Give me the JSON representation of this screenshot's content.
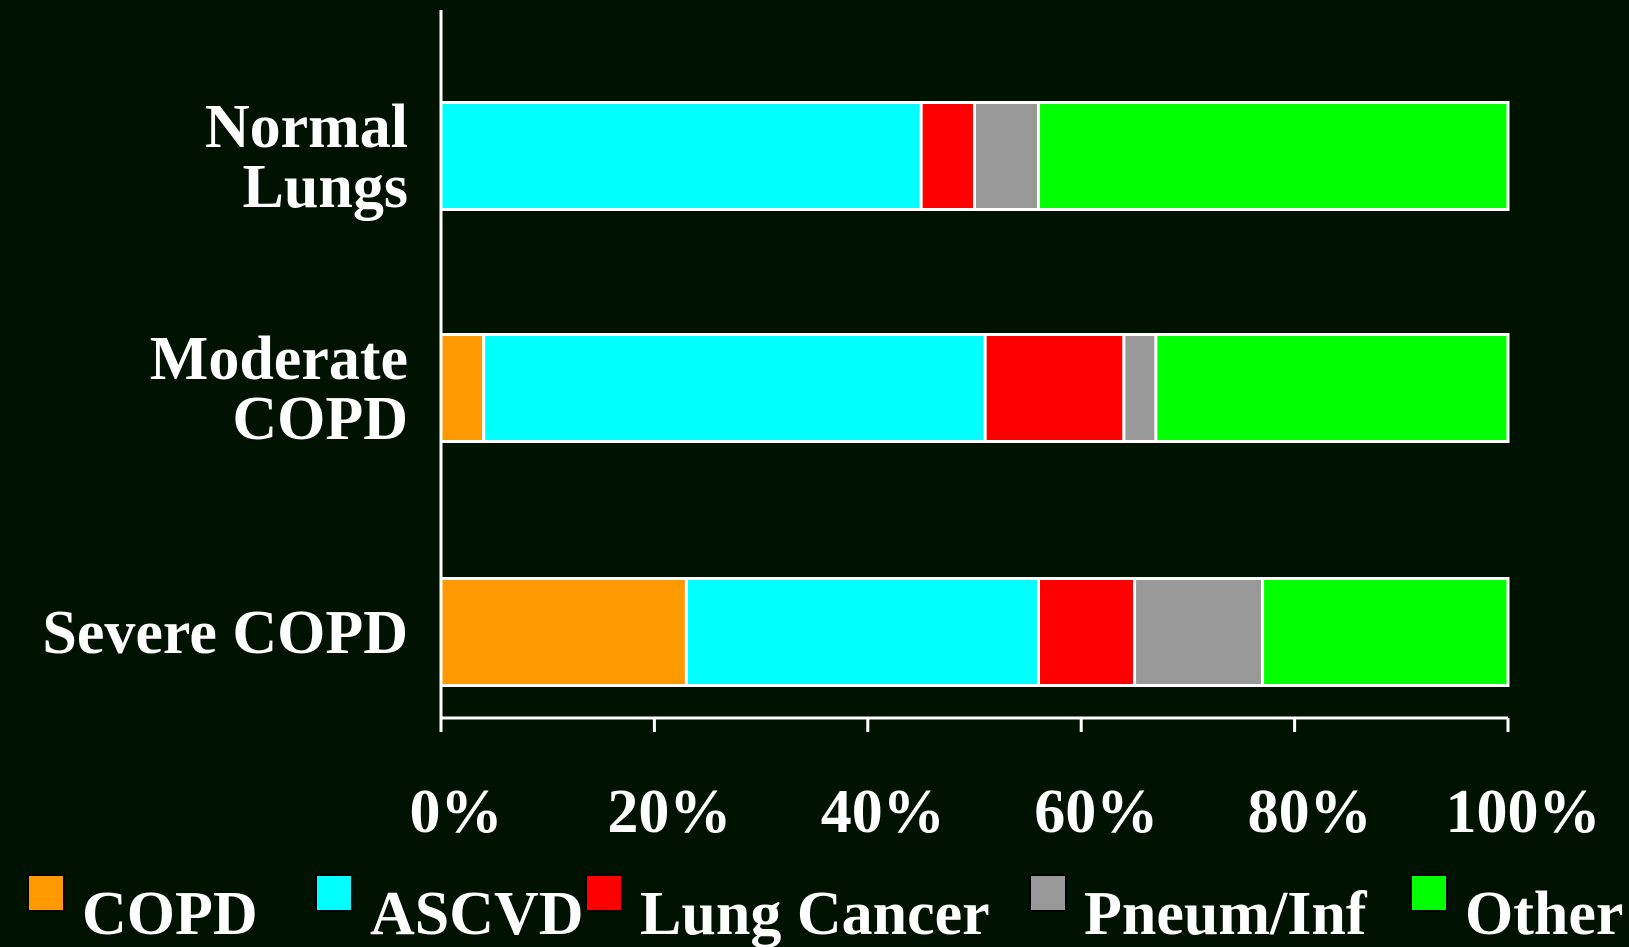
{
  "chart_data": {
    "type": "bar",
    "orientation": "horizontal",
    "stacked": true,
    "normalized_percent": true,
    "categories": [
      "Normal\nLungs",
      "Moderate\nCOPD",
      "Severe COPD"
    ],
    "series": [
      {
        "name": "COPD",
        "color": "#ff9900",
        "values": [
          0,
          4,
          23
        ]
      },
      {
        "name": "ASCVD",
        "color": "#00ffff",
        "values": [
          45,
          47,
          33
        ]
      },
      {
        "name": "Lung Cancer",
        "color": "#ff0000",
        "values": [
          5,
          13,
          9
        ]
      },
      {
        "name": "Pneum/Inf",
        "color": "#999999",
        "values": [
          6,
          3,
          12
        ]
      },
      {
        "name": "Other",
        "color": "#00ff00",
        "values": [
          44,
          33,
          23
        ]
      }
    ],
    "x_ticks": [
      "0%",
      "20%",
      "40%",
      "60%",
      "80%",
      "100%"
    ],
    "xlim": [
      0,
      100
    ],
    "title": "",
    "xlabel": "",
    "ylabel": "",
    "grid": false,
    "legend_position": "bottom",
    "colors": {
      "background": "#001200",
      "axis": "#ffffff",
      "text": "#ffffff",
      "bar_border": "#ffffff"
    }
  }
}
